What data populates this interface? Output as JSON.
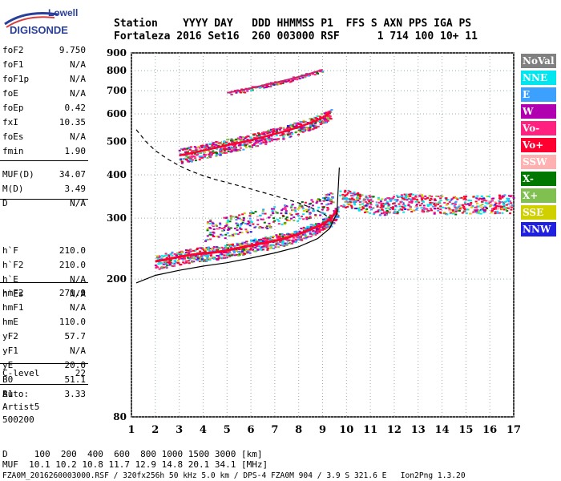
{
  "logo": {
    "line1": "Lowell",
    "line2": "DIGISONDE"
  },
  "header": {
    "row1": "Station    YYYY DAY   DDD HHMMSS P1  FFS S AXN PPS IGA PS",
    "row2": "Fortaleza 2016 Set16  260 003000 RSF      1 714 100 10+ 11"
  },
  "params": {
    "group1": [
      {
        "label": "foF2",
        "value": "9.750"
      },
      {
        "label": "foF1",
        "value": "N/A"
      },
      {
        "label": "foF1p",
        "value": "N/A"
      },
      {
        "label": "foE",
        "value": "N/A"
      },
      {
        "label": "foEp",
        "value": "0.42"
      },
      {
        "label": "fxI",
        "value": "10.35"
      },
      {
        "label": "foEs",
        "value": "N/A"
      },
      {
        "label": "fmin",
        "value": "1.90"
      }
    ],
    "group2": [
      {
        "label": "MUF(D)",
        "value": "34.07"
      },
      {
        "label": "M(D)",
        "value": "3.49"
      },
      {
        "label": "D",
        "value": "N/A"
      }
    ],
    "group3": [
      {
        "label": "h`F",
        "value": "210.0"
      },
      {
        "label": "h`F2",
        "value": "210.0"
      },
      {
        "label": "h`E",
        "value": "N/A"
      },
      {
        "label": "h`Es",
        "value": "N/A"
      }
    ],
    "group4": [
      {
        "label": "hmF2",
        "value": "271.9"
      },
      {
        "label": "hmF1",
        "value": "N/A"
      },
      {
        "label": "hmE",
        "value": "110.0"
      },
      {
        "label": "yF2",
        "value": "57.7"
      },
      {
        "label": "yF1",
        "value": "N/A"
      },
      {
        "label": "yE",
        "value": "20.0"
      },
      {
        "label": "B0",
        "value": "51.1"
      },
      {
        "label": "B1",
        "value": "3.33"
      }
    ],
    "group5": [
      {
        "label": "C-level",
        "value": "22"
      }
    ],
    "auto_lines": [
      "Auto:",
      "Artist5",
      "500200"
    ]
  },
  "legend": [
    {
      "label": "NoVal",
      "color": "#808080"
    },
    {
      "label": "NNE",
      "color": "#00e5ee"
    },
    {
      "label": "E",
      "color": "#3ca0ff"
    },
    {
      "label": "W",
      "color": "#b000b0"
    },
    {
      "label": "Vo-",
      "color": "#ff2080"
    },
    {
      "label": "Vo+",
      "color": "#ff0030"
    },
    {
      "label": "SSW",
      "color": "#ffb0b0"
    },
    {
      "label": "X-",
      "color": "#007800"
    },
    {
      "label": "X+",
      "color": "#80c050"
    },
    {
      "label": "SSE",
      "color": "#d0d000"
    },
    {
      "label": "NNW",
      "color": "#2020e0"
    }
  ],
  "footer": {
    "line1": "D     100  200  400  600  800 1000 1500 3000 [km]",
    "line2": "MUF  10.1 10.2 10.8 11.7 12.9 14.8 20.1 34.1 [MHz]",
    "line3": "FZA0M_2016260003000.RSF / 320fx256h 50 kHz 5.0 km / DPS-4 FZA0M 904 / 3.9 S 321.6 E   Ion2Png 1.3.20"
  },
  "chart_data": {
    "type": "scatter",
    "xlim": [
      1,
      17
    ],
    "ylim": [
      80,
      900
    ],
    "y_scale": "log",
    "x_ticks": [
      1,
      2,
      3,
      4,
      5,
      6,
      7,
      8,
      9,
      10,
      11,
      12,
      13,
      14,
      15,
      16,
      17
    ],
    "y_ticks": [
      80,
      200,
      300,
      400,
      500,
      600,
      700,
      800,
      900
    ],
    "grid": "dotted",
    "traces": [
      {
        "name": "o-trace",
        "x": [
          2.0,
          2.5,
          3.0,
          3.5,
          4.0,
          4.5,
          5.0,
          5.5,
          6.0,
          6.5,
          7.0,
          7.5,
          8.0,
          8.5,
          9.0,
          9.3,
          9.6
        ],
        "y": [
          225,
          228,
          232,
          235,
          237,
          239,
          242,
          246,
          250,
          254,
          258,
          263,
          270,
          278,
          288,
          297,
          315
        ]
      },
      {
        "name": "x-trace",
        "x": [
          4.0,
          4.5,
          5.0,
          5.5,
          6.0,
          6.5,
          7.0,
          7.5,
          8.0,
          8.5,
          9.0,
          9.4
        ],
        "y": [
          275,
          280,
          285,
          290,
          295,
          300,
          305,
          310,
          315,
          322,
          330,
          345
        ]
      },
      {
        "name": "second-hop",
        "x": [
          3.0,
          3.5,
          4.0,
          4.5,
          5.0,
          5.5,
          6.0,
          6.5,
          7.0,
          7.5,
          8.0,
          8.5,
          9.0,
          9.3
        ],
        "y": [
          455,
          462,
          470,
          478,
          487,
          495,
          504,
          514,
          525,
          536,
          550,
          565,
          585,
          605
        ]
      },
      {
        "name": "third-hop",
        "x": [
          5.0,
          5.5,
          6.0,
          6.5,
          7.0,
          7.5,
          8.0,
          8.5,
          9.0
        ],
        "y": [
          690,
          700,
          712,
          725,
          738,
          752,
          768,
          785,
          805
        ]
      },
      {
        "name": "spread-f",
        "x": [
          9.8,
          10.2,
          10.6,
          11.0,
          11.5,
          12.0,
          12.5,
          13.0,
          13.5,
          14.0,
          14.5,
          15.0,
          15.5,
          16.0,
          16.5,
          17.0
        ],
        "y": [
          345,
          340,
          335,
          330,
          325,
          330,
          335,
          333,
          330,
          330,
          328,
          330,
          330,
          330,
          332,
          330
        ]
      }
    ],
    "profile_solid": {
      "x": [
        1.2,
        2.0,
        3.0,
        4.0,
        5.0,
        6.0,
        7.0,
        8.0,
        8.8,
        9.3,
        9.6,
        9.7
      ],
      "y": [
        195,
        205,
        212,
        218,
        223,
        230,
        238,
        248,
        262,
        280,
        310,
        420
      ]
    },
    "profile_dashed": {
      "x": [
        1.2,
        1.6,
        2.0,
        2.5,
        3.0,
        3.5,
        4.0,
        4.5,
        5.0,
        5.5,
        6.0,
        6.5,
        7.0,
        7.5,
        8.0,
        8.5,
        9.0,
        9.3
      ],
      "y": [
        540,
        500,
        470,
        445,
        425,
        410,
        398,
        388,
        380,
        372,
        364,
        356,
        348,
        340,
        332,
        322,
        310,
        300
      ]
    }
  }
}
